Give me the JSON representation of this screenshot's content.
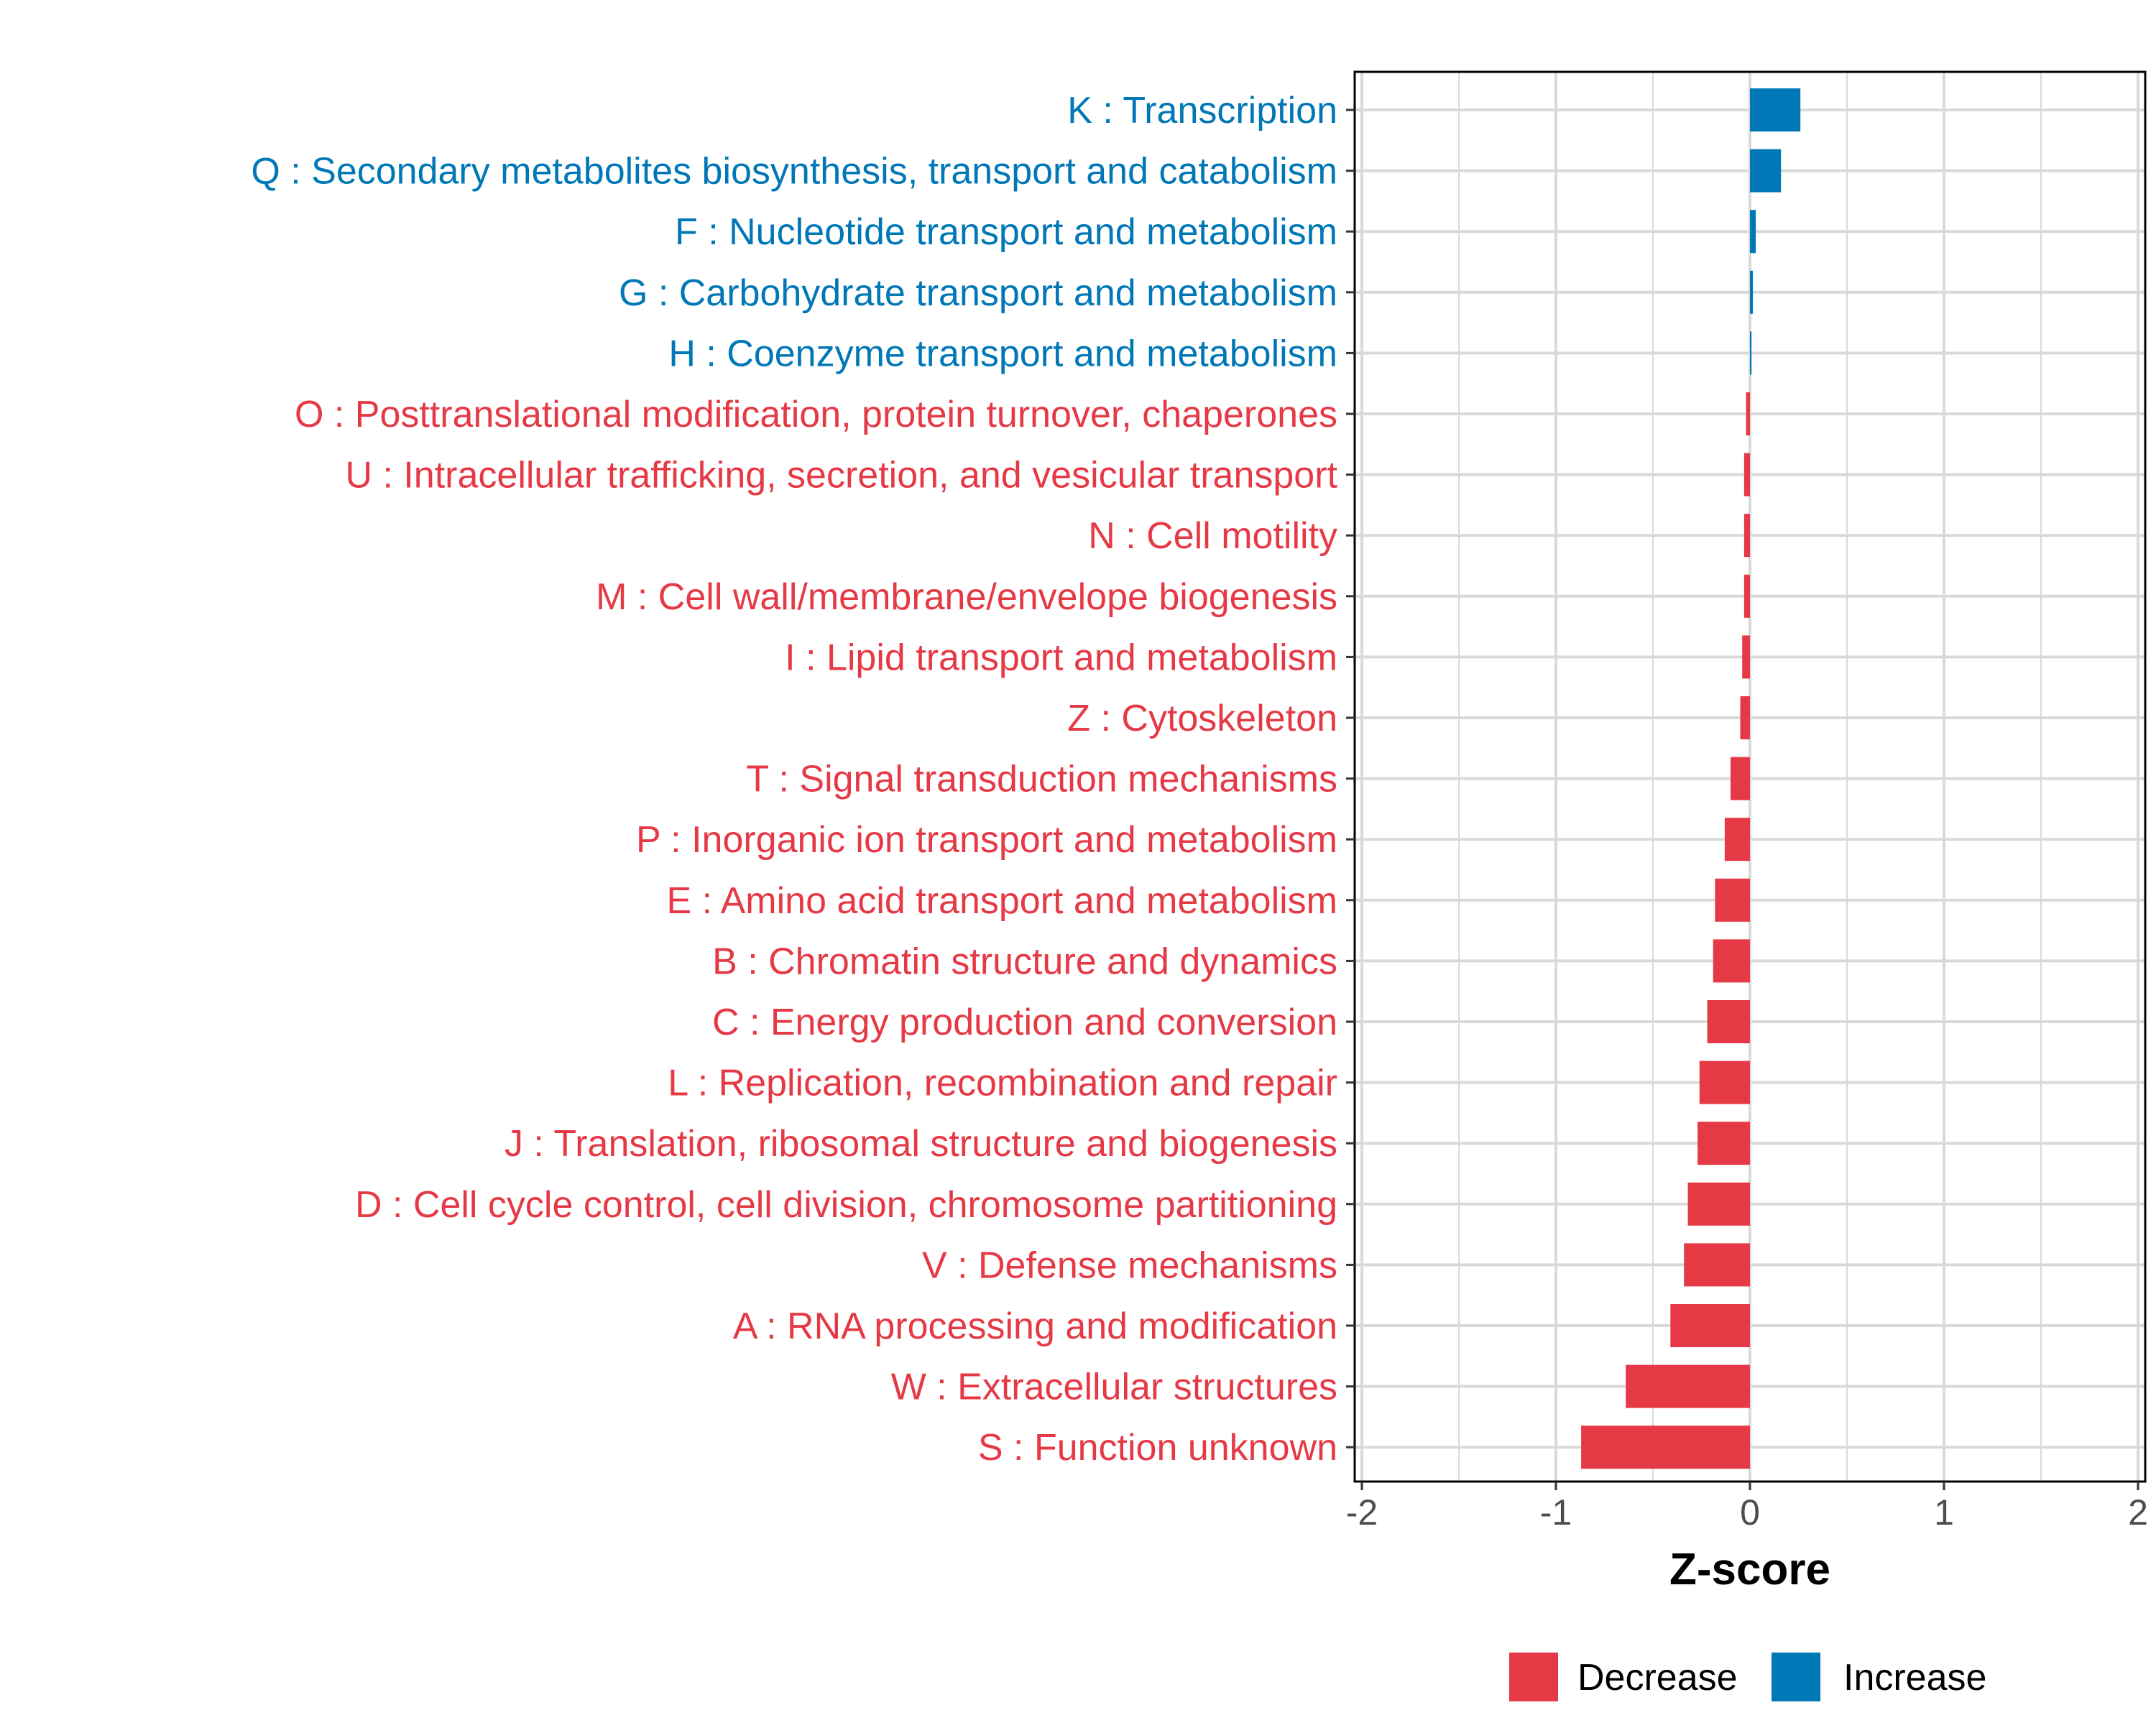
{
  "chart_data": {
    "type": "bar",
    "orientation": "horizontal",
    "title": "",
    "xlabel": "Z-score",
    "ylabel": "",
    "xlim": [
      -2,
      2
    ],
    "xticks": [
      -2,
      -1,
      0,
      1,
      2
    ],
    "xtick_labels": [
      "-2",
      "-1",
      "0",
      "1",
      "2"
    ],
    "grid": true,
    "legend_position": "bottom",
    "legend": [
      {
        "name": "Decrease",
        "color": "#e63946"
      },
      {
        "name": "Increase",
        "color": "#0077b6"
      }
    ],
    "categories": [
      {
        "label": "K : Transcription",
        "value": 0.26,
        "group": "Increase"
      },
      {
        "label": "Q : Secondary metabolites biosynthesis, transport and catabolism",
        "value": 0.16,
        "group": "Increase"
      },
      {
        "label": "F : Nucleotide transport and metabolism",
        "value": 0.03,
        "group": "Increase"
      },
      {
        "label": "G : Carbohydrate transport and metabolism",
        "value": 0.015,
        "group": "Increase"
      },
      {
        "label": "H : Coenzyme transport and metabolism",
        "value": 0.008,
        "group": "Increase"
      },
      {
        "label": "O : Posttranslational modification, protein turnover, chaperones",
        "value": -0.02,
        "group": "Decrease"
      },
      {
        "label": "U : Intracellular trafficking, secretion, and vesicular transport",
        "value": -0.03,
        "group": "Decrease"
      },
      {
        "label": "N : Cell motility",
        "value": -0.03,
        "group": "Decrease"
      },
      {
        "label": "M : Cell wall/membrane/envelope biogenesis",
        "value": -0.03,
        "group": "Decrease"
      },
      {
        "label": "I : Lipid transport and metabolism",
        "value": -0.04,
        "group": "Decrease"
      },
      {
        "label": "Z : Cytoskeleton",
        "value": -0.05,
        "group": "Decrease"
      },
      {
        "label": "T : Signal transduction mechanisms",
        "value": -0.1,
        "group": "Decrease"
      },
      {
        "label": "P : Inorganic ion transport and metabolism",
        "value": -0.13,
        "group": "Decrease"
      },
      {
        "label": "E : Amino acid transport and metabolism",
        "value": -0.18,
        "group": "Decrease"
      },
      {
        "label": "B : Chromatin structure and dynamics",
        "value": -0.19,
        "group": "Decrease"
      },
      {
        "label": "C : Energy production and conversion",
        "value": -0.22,
        "group": "Decrease"
      },
      {
        "label": "L : Replication, recombination and repair",
        "value": -0.26,
        "group": "Decrease"
      },
      {
        "label": "J : Translation, ribosomal structure and biogenesis",
        "value": -0.27,
        "group": "Decrease"
      },
      {
        "label": "D : Cell cycle control, cell division, chromosome partitioning",
        "value": -0.32,
        "group": "Decrease"
      },
      {
        "label": "V : Defense mechanisms",
        "value": -0.34,
        "group": "Decrease"
      },
      {
        "label": "A : RNA processing and modification",
        "value": -0.41,
        "group": "Decrease"
      },
      {
        "label": "W : Extracellular structures",
        "value": -0.64,
        "group": "Decrease"
      },
      {
        "label": "S : Function unknown",
        "value": -0.87,
        "group": "Decrease"
      }
    ]
  }
}
